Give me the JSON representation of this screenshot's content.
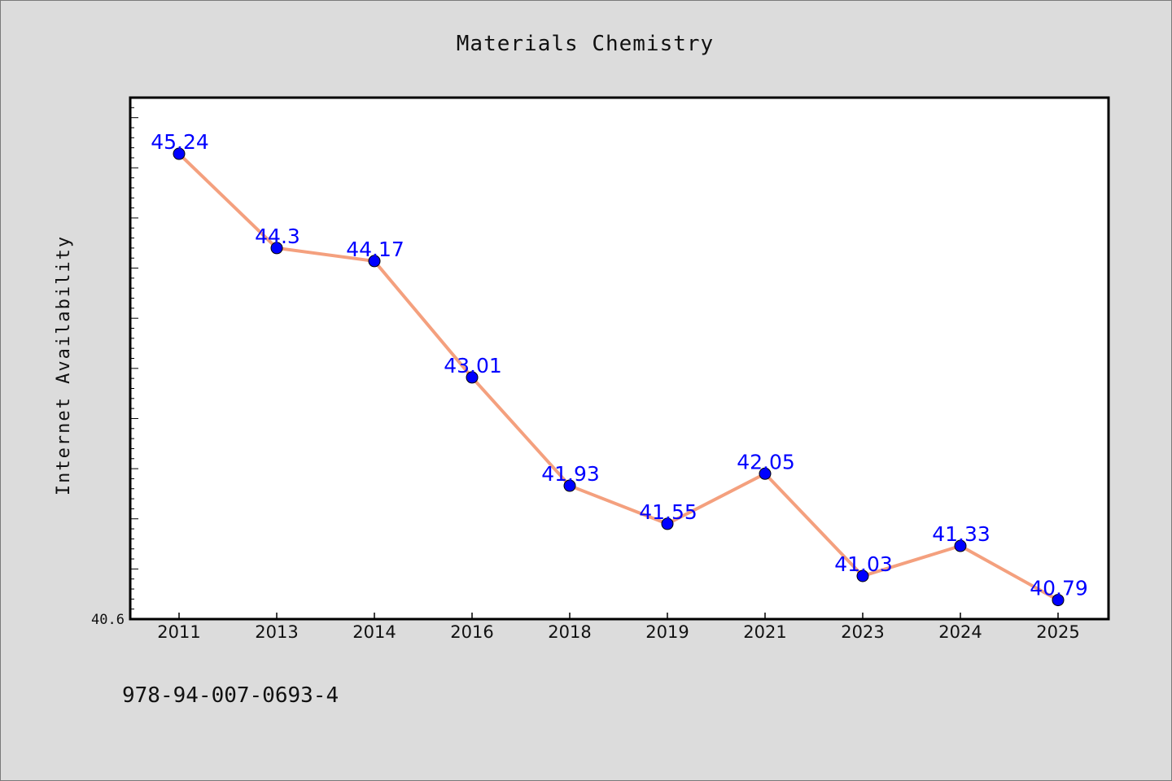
{
  "chart_data": {
    "type": "line",
    "title": "Materials Chemistry",
    "xlabel": "",
    "ylabel": "Internet Availability",
    "categories": [
      "2011",
      "2013",
      "2014",
      "2016",
      "2018",
      "2019",
      "2021",
      "2023",
      "2024",
      "2025"
    ],
    "series": [
      {
        "values": [
          45.24,
          44.3,
          44.17,
          43.01,
          41.93,
          41.55,
          42.05,
          41.03,
          41.33,
          40.79
        ]
      }
    ],
    "data_labels": [
      "45.24",
      "44.3",
      "44.17",
      "43.01",
      "41.93",
      "41.55",
      "42.05",
      "41.03",
      "41.33",
      "40.79"
    ],
    "y_tick_labels": [
      "40.6"
    ],
    "ylim": [
      40.6,
      45.8
    ],
    "grid": false,
    "legend": "none",
    "colors": {
      "line": "#f4a07e",
      "marker": "#0000ff",
      "data_label": "#0000ff",
      "plot_background": "#ffffff",
      "page_background": "#dcdcdc"
    }
  },
  "footer": {
    "text": "978-94-007-0693-4"
  }
}
